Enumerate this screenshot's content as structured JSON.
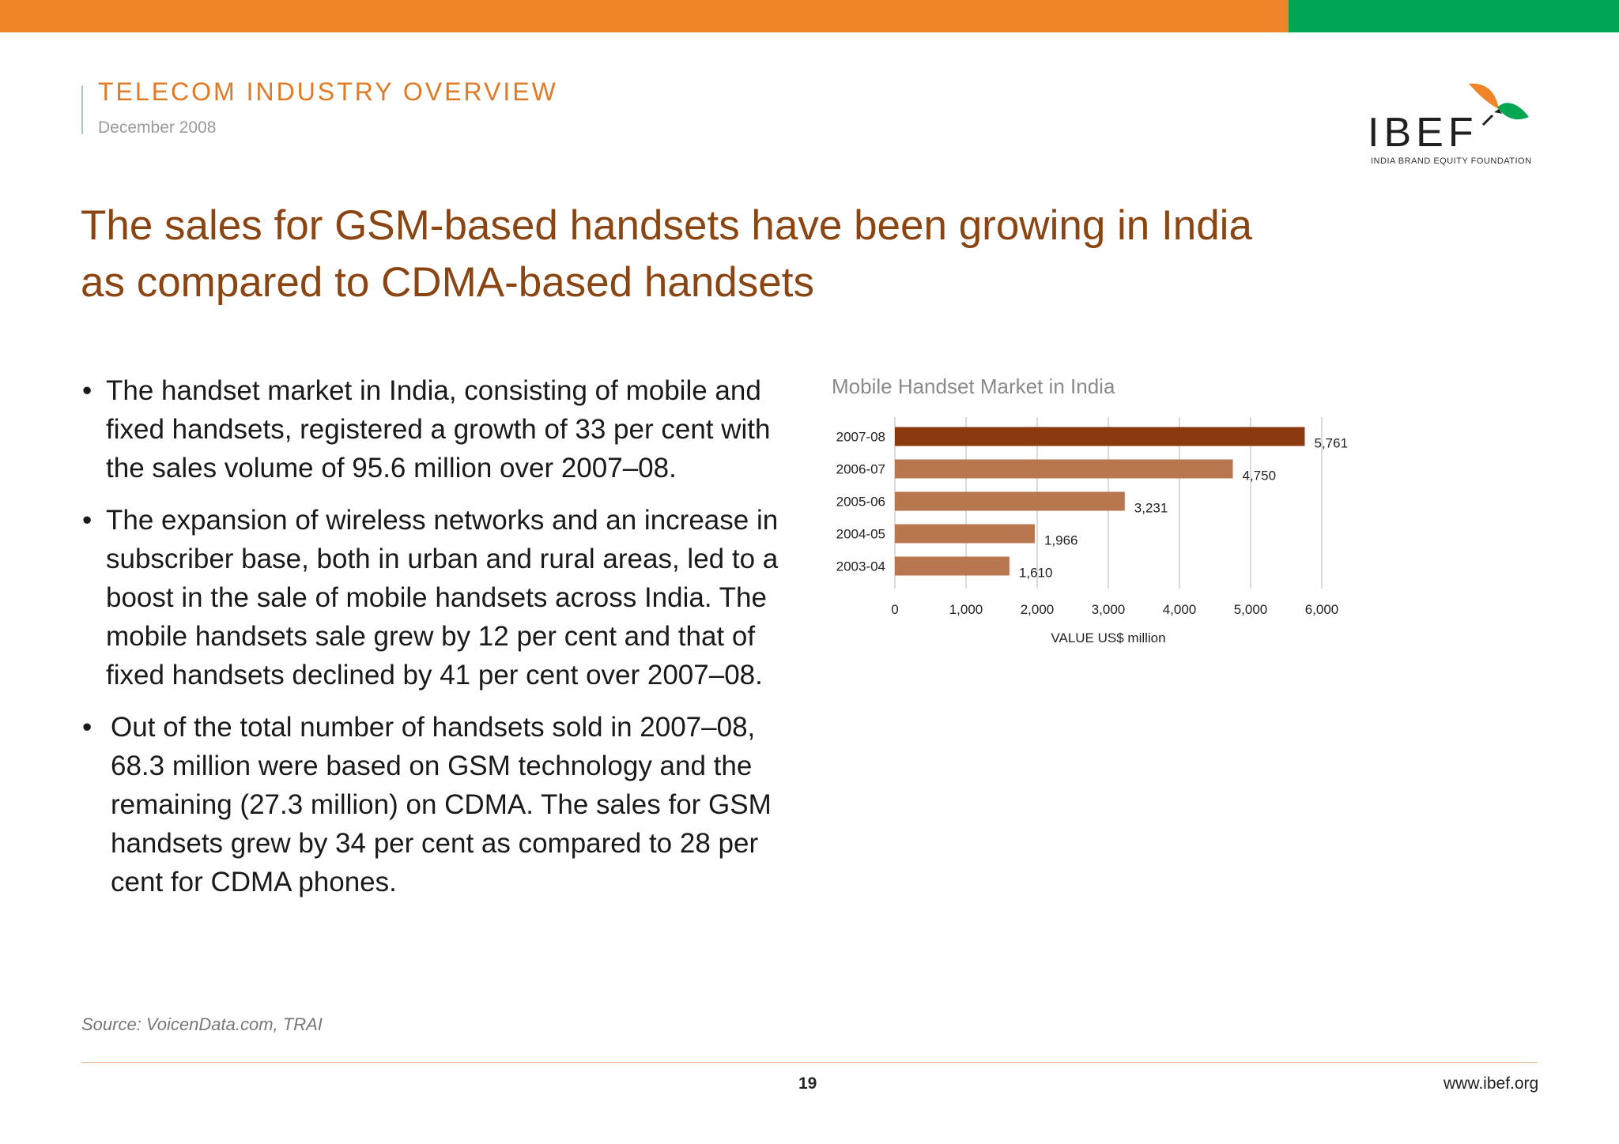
{
  "header": {
    "section": "TELECOM INDUSTRY OVERVIEW",
    "date": "December 2008",
    "logo_word": "IBEF",
    "logo_sub": "INDIA BRAND EQUITY FOUNDATION"
  },
  "title_lines": [
    "The sales for GSM-based handsets have been growing in India",
    "as compared to CDMA-based handsets"
  ],
  "bullets": [
    "The handset market in India, consisting of mobile and fixed handsets, registered a growth of 33 per cent with the sales volume of 95.6 million over 2007–08.",
    "The expansion of wireless networks and an increase in subscriber base, both in urban and rural areas, led to a boost in the sale of mobile handsets across India. The mobile handsets sale grew by 12 per cent and that of fixed handsets declined by 41 per cent over 2007–08.",
    "Out of the total number of handsets sold in 2007–08, 68.3 million were based on GSM technology and the remaining (27.3 million) on CDMA. The sales for GSM handsets grew by 34 per cent as compared to 28 per cent for CDMA phones."
  ],
  "chart_data": {
    "type": "bar",
    "orientation": "horizontal",
    "title": "Mobile Handset Market in India",
    "categories": [
      "2007-08",
      "2006-07",
      "2005-06",
      "2004-05",
      "2003-04"
    ],
    "values": [
      5761,
      4750,
      3231,
      1966,
      1610
    ],
    "value_labels": [
      "5,761",
      "4,750",
      "3,231",
      "1,966",
      "1,610"
    ],
    "xlabel": "VALUE US$ million",
    "ylabel": "",
    "xlim": [
      0,
      6000
    ],
    "xticks": [
      0,
      1000,
      2000,
      3000,
      4000,
      5000,
      6000
    ],
    "xtick_labels": [
      "0",
      "1,000",
      "2,000",
      "3,000",
      "4,000",
      "5,000",
      "6,000"
    ],
    "grid": "vertical",
    "colors": {
      "highlight": "#8b3a0f",
      "default": "#b8774e",
      "grid": "#cfcfcf"
    }
  },
  "footer": {
    "source": "Source: VoicenData.com, TRAI",
    "page": "19",
    "site": "www.ibef.org"
  }
}
